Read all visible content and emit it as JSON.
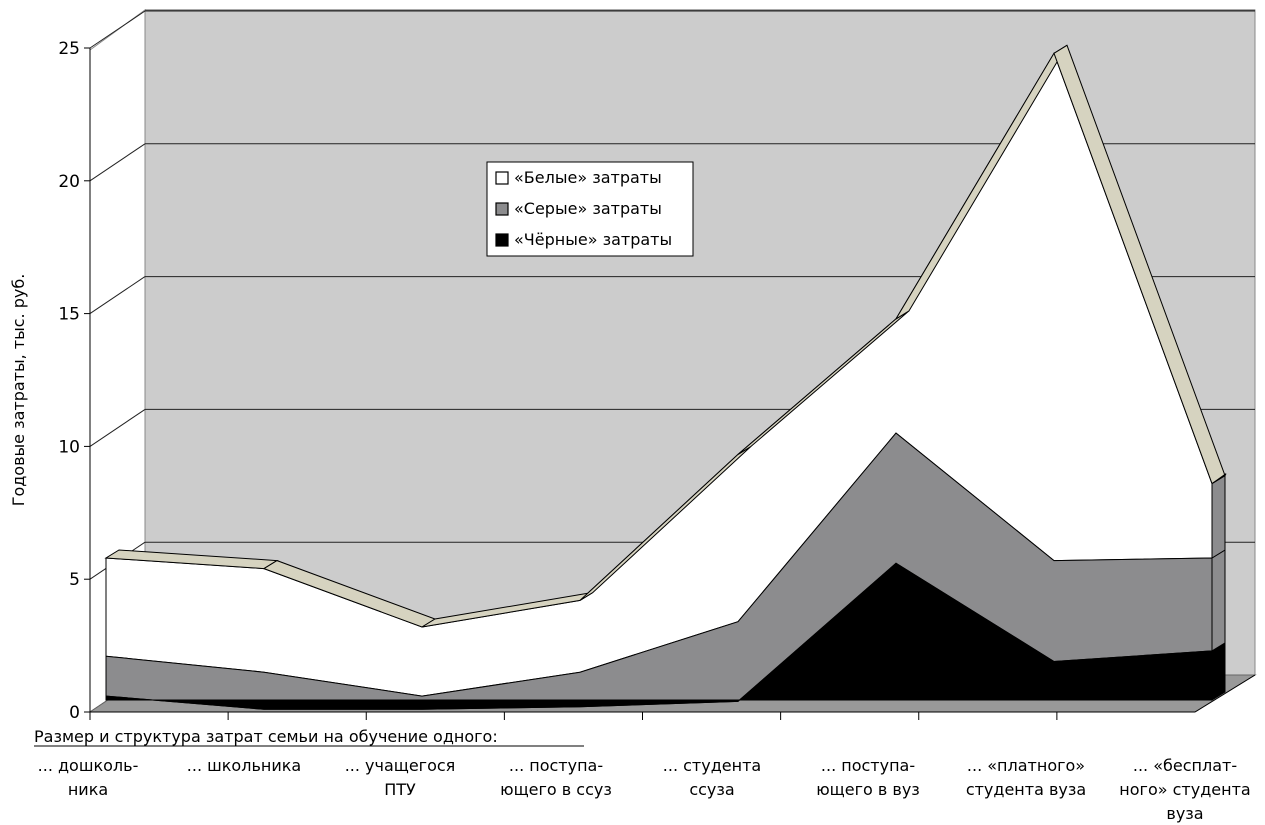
{
  "chart_data": {
    "type": "area",
    "stacked": true,
    "three_d": true,
    "ylabel": "Годовые затраты, тыс. руб.",
    "xlabel": "Размер и структура затрат семьи на обучение одного:",
    "ylim": [
      0,
      25
    ],
    "yticks": [
      "0",
      "5",
      "10",
      "15",
      "20",
      "25"
    ],
    "grid": true,
    "legend_position": "top-center",
    "categories": [
      "... дошколь-\nника",
      "... школьника",
      "... учащегося\nПТУ",
      "... поступа-\nющего в ссуз",
      "... студента\nссуза",
      "... поступа-\nющего в вуз",
      "... «платного»\nстудента вуза",
      "... «бесплат-\nного» студента\nвуза"
    ],
    "series": [
      {
        "name": "«Чёрные» затраты",
        "color": "#000000",
        "values": [
          0.6,
          0.1,
          0.1,
          0.2,
          0.4,
          5.6,
          1.9,
          2.3
        ]
      },
      {
        "name": "«Серые» затраты",
        "color": "#8c8c8e",
        "values": [
          1.5,
          1.4,
          0.5,
          1.3,
          3.0,
          4.9,
          3.8,
          3.5
        ]
      },
      {
        "name": "«Белые» затраты",
        "color": "#ffffff",
        "values": [
          3.7,
          3.9,
          2.6,
          2.7,
          6.3,
          4.3,
          19.1,
          2.8
        ]
      }
    ],
    "colors": {
      "back_wall": "#cccccc",
      "floor": "#999999",
      "top_band": "#d6d3c0"
    }
  }
}
